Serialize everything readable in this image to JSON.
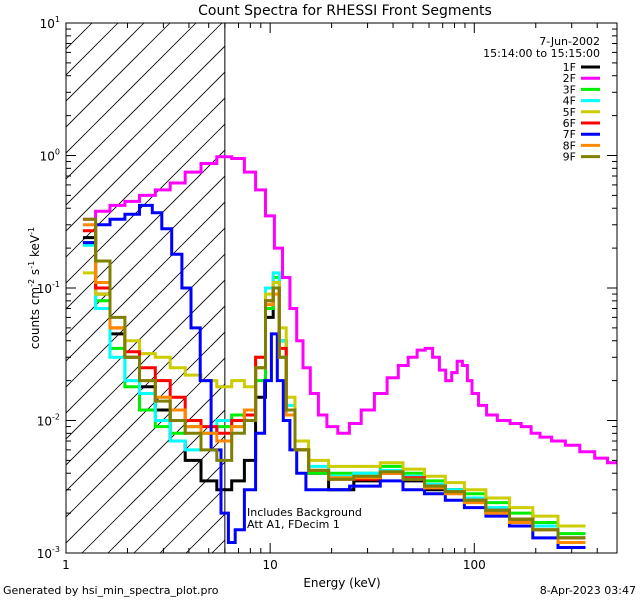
{
  "chart_data": {
    "type": "line",
    "title": "Count Spectra for RHESSI Front Segments",
    "xlabel": "Energy (keV)",
    "ylabel": "counts cm",
    "ylabel_parts": [
      "-2",
      " s",
      "-1",
      " keV",
      "-1"
    ],
    "xscale": "log",
    "yscale": "log",
    "xlim": [
      1,
      500
    ],
    "ylim": [
      0.001,
      10
    ],
    "x_ticks": [
      {
        "value": 1,
        "label": "1"
      },
      {
        "value": 10,
        "label": "10"
      },
      {
        "value": 100,
        "label": "100"
      }
    ],
    "y_ticks": [
      {
        "value": 0.001,
        "label": "10",
        "exp": "-3"
      },
      {
        "value": 0.01,
        "label": "10",
        "exp": "-2"
      },
      {
        "value": 0.1,
        "label": "10",
        "exp": "-1"
      },
      {
        "value": 1,
        "label": "10",
        "exp": "0"
      },
      {
        "value": 10,
        "label": "10",
        "exp": "1"
      }
    ],
    "date": "7-Jun-2002",
    "time_range": "15:14:00 to 15:15:00",
    "annotation_lines": [
      "Includes Background",
      "Att A1, FDecim 1"
    ],
    "attenuator_energy": 6,
    "series": [
      {
        "name": "1F",
        "color": "#000000",
        "x": [
          1.3,
          1.5,
          1.8,
          2.1,
          2.5,
          3.0,
          3.5,
          4.2,
          5.0,
          6.0,
          7.0,
          8.0,
          9.0,
          10.0,
          10.7,
          11.5,
          12.5,
          14.0,
          17.0,
          22.0,
          30.0,
          40.0,
          50.0,
          65.0,
          80.0,
          100.0,
          130.0,
          170.0,
          220.0,
          300.0
        ],
        "y": [
          0.24,
          0.09,
          0.045,
          0.03,
          0.018,
          0.012,
          0.007,
          0.005,
          0.0035,
          0.003,
          0.0035,
          0.005,
          0.015,
          0.06,
          0.1,
          0.04,
          0.012,
          0.006,
          0.004,
          0.003,
          0.0035,
          0.004,
          0.0035,
          0.003,
          0.003,
          0.0025,
          0.002,
          0.0018,
          0.0016,
          0.0013
        ]
      },
      {
        "name": "2F",
        "color": "#ff00ff",
        "x": [
          1.3,
          1.5,
          1.8,
          2.1,
          2.5,
          3.0,
          3.5,
          4.2,
          5.0,
          6.0,
          7.0,
          8.0,
          9.0,
          10.0,
          11.0,
          12.0,
          13.0,
          14.0,
          15.0,
          16.5,
          18.0,
          20.0,
          23.0,
          26.0,
          30.0,
          35.0,
          40.0,
          45.0,
          50.0,
          55.0,
          60.0,
          65.0,
          70.0,
          75.0,
          80.0,
          85.0,
          90.0,
          95.0,
          100.0,
          110.0,
          120.0,
          140.0,
          160.0,
          180.0,
          200.0,
          220.0,
          260.0,
          300.0,
          360.0,
          420.0,
          480.0
        ],
        "y": [
          0.33,
          0.38,
          0.42,
          0.45,
          0.5,
          0.55,
          0.62,
          0.75,
          0.87,
          0.98,
          0.95,
          0.75,
          0.55,
          0.35,
          0.2,
          0.12,
          0.07,
          0.04,
          0.025,
          0.016,
          0.011,
          0.009,
          0.008,
          0.0095,
          0.012,
          0.016,
          0.021,
          0.026,
          0.03,
          0.034,
          0.035,
          0.03,
          0.024,
          0.02,
          0.023,
          0.028,
          0.026,
          0.02,
          0.016,
          0.013,
          0.011,
          0.01,
          0.0095,
          0.009,
          0.008,
          0.0075,
          0.007,
          0.0065,
          0.0058,
          0.0052,
          0.0048
        ]
      },
      {
        "name": "3F",
        "color": "#00ee00",
        "x": [
          1.3,
          1.5,
          1.8,
          2.1,
          2.5,
          3.0,
          3.5,
          4.2,
          5.0,
          6.0,
          7.0,
          8.0,
          9.0,
          10.0,
          10.7,
          11.5,
          12.5,
          14.0,
          17.0,
          22.0,
          30.0,
          40.0,
          50.0,
          65.0,
          80.0,
          100.0,
          130.0,
          170.0,
          220.0,
          300.0
        ],
        "y": [
          0.22,
          0.08,
          0.035,
          0.018,
          0.012,
          0.009,
          0.008,
          0.009,
          0.008,
          0.009,
          0.011,
          0.01,
          0.02,
          0.07,
          0.12,
          0.03,
          0.012,
          0.006,
          0.004,
          0.004,
          0.004,
          0.0045,
          0.004,
          0.0035,
          0.003,
          0.0028,
          0.0024,
          0.002,
          0.0017,
          0.0014
        ]
      },
      {
        "name": "4F",
        "color": "#00ffff",
        "x": [
          1.3,
          1.5,
          1.8,
          2.1,
          2.5,
          3.0,
          3.5,
          4.2,
          5.0,
          6.0,
          7.0,
          8.0,
          9.0,
          10.0,
          10.7,
          11.5,
          12.5,
          14.0,
          17.0,
          22.0,
          30.0,
          40.0,
          50.0,
          65.0,
          80.0,
          100.0,
          130.0,
          170.0,
          220.0,
          300.0
        ],
        "y": [
          0.21,
          0.07,
          0.03,
          0.02,
          0.016,
          0.01,
          0.007,
          0.006,
          0.008,
          0.01,
          0.009,
          0.012,
          0.03,
          0.1,
          0.13,
          0.04,
          0.013,
          0.007,
          0.0045,
          0.0038,
          0.004,
          0.0042,
          0.0038,
          0.0033,
          0.003,
          0.0026,
          0.0022,
          0.0018,
          0.0016,
          0.0013
        ]
      },
      {
        "name": "5F",
        "color": "#cccc00",
        "x": [
          1.3,
          1.5,
          1.8,
          2.1,
          2.5,
          3.0,
          3.5,
          4.2,
          5.0,
          6.0,
          7.0,
          8.0,
          9.0,
          10.0,
          10.7,
          11.5,
          12.5,
          14.0,
          17.0,
          22.0,
          30.0,
          40.0,
          50.0,
          65.0,
          80.0,
          100.0,
          130.0,
          170.0,
          220.0,
          300.0
        ],
        "y": [
          0.13,
          0.09,
          0.05,
          0.04,
          0.032,
          0.03,
          0.025,
          0.022,
          0.02,
          0.018,
          0.02,
          0.018,
          0.03,
          0.09,
          0.11,
          0.05,
          0.015,
          0.007,
          0.005,
          0.0045,
          0.0045,
          0.0048,
          0.0043,
          0.0038,
          0.0034,
          0.003,
          0.0026,
          0.0022,
          0.0019,
          0.0016
        ]
      },
      {
        "name": "6F",
        "color": "#ff0000",
        "x": [
          1.3,
          1.5,
          1.8,
          2.1,
          2.5,
          3.0,
          3.5,
          4.2,
          5.0,
          6.0,
          7.0,
          8.0,
          9.0,
          10.0,
          10.7,
          11.5,
          12.5,
          14.0,
          17.0,
          22.0,
          30.0,
          40.0,
          50.0,
          65.0,
          80.0,
          100.0,
          130.0,
          170.0,
          220.0,
          300.0
        ],
        "y": [
          0.27,
          0.1,
          0.05,
          0.033,
          0.025,
          0.02,
          0.015,
          0.01,
          0.009,
          0.008,
          0.01,
          0.011,
          0.03,
          0.08,
          0.1,
          0.035,
          0.012,
          0.006,
          0.0042,
          0.0036,
          0.0036,
          0.004,
          0.0037,
          0.0032,
          0.0029,
          0.0025,
          0.0021,
          0.0018,
          0.0015,
          0.0013
        ]
      },
      {
        "name": "7F",
        "color": "#0000ff",
        "x": [
          1.3,
          1.5,
          1.8,
          2.1,
          2.5,
          2.8,
          3.1,
          3.5,
          3.9,
          4.3,
          4.8,
          5.5,
          6.0,
          6.5,
          7.0,
          8.0,
          9.0,
          9.8,
          10.5,
          11.2,
          12.0,
          13.0,
          14.0,
          16.0,
          20.0,
          30.0,
          40.0,
          50.0,
          65.0,
          80.0,
          100.0,
          130.0,
          170.0,
          220.0,
          300.0
        ],
        "y": [
          0.22,
          0.3,
          0.33,
          0.36,
          0.42,
          0.37,
          0.28,
          0.18,
          0.1,
          0.05,
          0.02,
          0.006,
          0.002,
          0.0012,
          0.0015,
          0.003,
          0.008,
          0.02,
          0.045,
          0.02,
          0.01,
          0.006,
          0.004,
          0.003,
          0.003,
          0.0032,
          0.0035,
          0.003,
          0.0028,
          0.0025,
          0.0022,
          0.0019,
          0.0016,
          0.0013,
          0.0011
        ]
      },
      {
        "name": "8F",
        "color": "#ff8800",
        "x": [
          1.3,
          1.5,
          1.8,
          2.1,
          2.5,
          3.0,
          3.5,
          4.2,
          5.0,
          6.0,
          7.0,
          8.0,
          9.0,
          10.0,
          10.7,
          11.5,
          12.5,
          14.0,
          17.0,
          22.0,
          30.0,
          40.0,
          50.0,
          65.0,
          80.0,
          100.0,
          130.0,
          170.0,
          220.0,
          300.0
        ],
        "y": [
          0.3,
          0.11,
          0.05,
          0.03,
          0.02,
          0.015,
          0.012,
          0.009,
          0.008,
          0.007,
          0.009,
          0.012,
          0.025,
          0.075,
          0.09,
          0.03,
          0.011,
          0.006,
          0.0042,
          0.0037,
          0.0037,
          0.004,
          0.0036,
          0.0031,
          0.0028,
          0.0024,
          0.002,
          0.0017,
          0.0015,
          0.0012
        ]
      },
      {
        "name": "9F",
        "color": "#808000",
        "x": [
          1.3,
          1.5,
          1.8,
          2.1,
          2.5,
          3.0,
          3.5,
          4.2,
          5.0,
          6.0,
          7.0,
          8.0,
          9.0,
          10.0,
          10.7,
          11.5,
          12.5,
          14.0,
          17.0,
          22.0,
          30.0,
          40.0,
          50.0,
          65.0,
          80.0,
          100.0,
          130.0,
          170.0,
          220.0,
          300.0
        ],
        "y": [
          0.33,
          0.16,
          0.06,
          0.03,
          0.02,
          0.014,
          0.01,
          0.008,
          0.006,
          0.005,
          0.008,
          0.01,
          0.025,
          0.08,
          0.1,
          0.03,
          0.012,
          0.006,
          0.0042,
          0.0036,
          0.0038,
          0.0041,
          0.0036,
          0.0032,
          0.0029,
          0.0025,
          0.0021,
          0.0018,
          0.0015,
          0.0013
        ]
      }
    ]
  },
  "footer": {
    "left": "Generated by hsi_min_spectra_plot.pro",
    "right": "8-Apr-2023 03:47"
  }
}
